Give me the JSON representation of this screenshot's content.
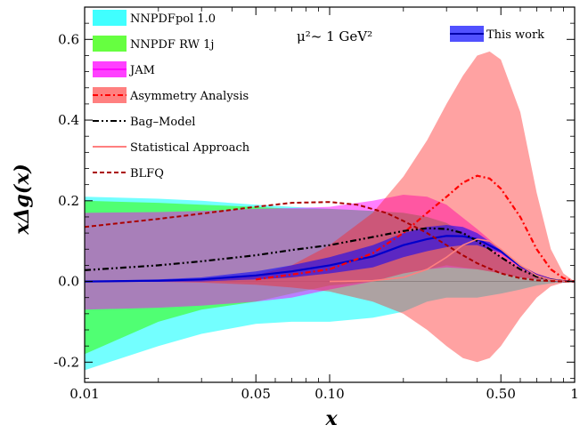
{
  "chart_data": {
    "type": "area",
    "xlabel": "x",
    "ylabel": "xΔg(x)",
    "annotation": "μ²~ 1 GeV²",
    "xscale": "log",
    "xlim": [
      0.01,
      1
    ],
    "ylim": [
      -0.25,
      0.68
    ],
    "x_ticks": [
      {
        "v": 0.01,
        "label": "0.01"
      },
      {
        "v": 0.05,
        "label": "0.05"
      },
      {
        "v": 0.1,
        "label": "0.10"
      },
      {
        "v": 0.5,
        "label": "0.50"
      },
      {
        "v": 1,
        "label": "1"
      }
    ],
    "y_ticks": [
      {
        "v": -0.2,
        "label": "-0.2"
      },
      {
        "v": 0.0,
        "label": "0.0"
      },
      {
        "v": 0.2,
        "label": "0.2"
      },
      {
        "v": 0.4,
        "label": "0.4"
      },
      {
        "v": 0.6,
        "label": "0.6"
      }
    ],
    "bands": [
      {
        "name": "NNPDFpol 1.0",
        "color": "#00ffff",
        "opacity": 0.55,
        "x": [
          0.01,
          0.02,
          0.03,
          0.05,
          0.07,
          0.1,
          0.15,
          0.2,
          0.25,
          0.3,
          0.4,
          0.5,
          0.6,
          0.7,
          0.8,
          0.9,
          1.0
        ],
        "upper": [
          0.21,
          0.205,
          0.2,
          0.19,
          0.185,
          0.18,
          0.175,
          0.17,
          0.16,
          0.145,
          0.1,
          0.06,
          0.03,
          0.015,
          0.006,
          0.002,
          0.0
        ],
        "lower": [
          -0.22,
          -0.16,
          -0.13,
          -0.105,
          -0.1,
          -0.1,
          -0.09,
          -0.075,
          -0.05,
          -0.04,
          -0.04,
          -0.03,
          -0.02,
          -0.01,
          -0.005,
          -0.002,
          0.0
        ]
      },
      {
        "name": "NNPDF RW 1j",
        "color": "#33ff00",
        "opacity": 0.55,
        "x": [
          0.01,
          0.02,
          0.03,
          0.05,
          0.07,
          0.1,
          0.15,
          0.2,
          0.25,
          0.3,
          0.4,
          0.5,
          0.6,
          0.7,
          0.8,
          0.9,
          1.0
        ],
        "upper": [
          0.2,
          0.195,
          0.19,
          0.185,
          0.18,
          0.18,
          0.175,
          0.17,
          0.16,
          0.145,
          0.1,
          0.06,
          0.03,
          0.015,
          0.006,
          0.002,
          0.0
        ],
        "lower": [
          -0.18,
          -0.1,
          -0.07,
          -0.05,
          -0.03,
          -0.01,
          0.0,
          0.02,
          0.03,
          0.04,
          0.03,
          0.02,
          0.01,
          0.006,
          0.003,
          0.001,
          0.0
        ]
      },
      {
        "name": "JAM",
        "color": "#ff00ff",
        "opacity": 0.5,
        "x": [
          0.01,
          0.02,
          0.03,
          0.05,
          0.07,
          0.1,
          0.15,
          0.2,
          0.25,
          0.3,
          0.4,
          0.5,
          0.6,
          0.7,
          0.8,
          0.9,
          1.0
        ],
        "upper": [
          0.17,
          0.172,
          0.175,
          0.18,
          0.182,
          0.185,
          0.2,
          0.215,
          0.21,
          0.19,
          0.13,
          0.08,
          0.04,
          0.02,
          0.008,
          0.002,
          0.0
        ],
        "lower": [
          -0.07,
          -0.065,
          -0.06,
          -0.05,
          -0.04,
          -0.02,
          0.0,
          0.02,
          0.03,
          0.035,
          0.03,
          0.02,
          0.01,
          0.006,
          0.003,
          0.001,
          0.0
        ]
      },
      {
        "name": "Asymmetry Analysis",
        "color": "#ff2222",
        "opacity": 0.42,
        "x": [
          0.01,
          0.02,
          0.03,
          0.05,
          0.07,
          0.1,
          0.15,
          0.2,
          0.25,
          0.3,
          0.35,
          0.4,
          0.45,
          0.5,
          0.6,
          0.7,
          0.8,
          0.9,
          1.0
        ],
        "upper": [
          0.0,
          0.001,
          0.004,
          0.015,
          0.04,
          0.09,
          0.17,
          0.26,
          0.35,
          0.44,
          0.51,
          0.56,
          0.57,
          0.55,
          0.42,
          0.22,
          0.08,
          0.02,
          0.0
        ],
        "lower": [
          0.0,
          -0.001,
          -0.003,
          -0.008,
          -0.015,
          -0.025,
          -0.05,
          -0.08,
          -0.12,
          -0.16,
          -0.19,
          -0.2,
          -0.19,
          -0.16,
          -0.09,
          -0.04,
          -0.012,
          -0.003,
          0.0
        ]
      },
      {
        "name": "This work",
        "color": "#0000ff",
        "opacity": 0.55,
        "with_line": true,
        "x": [
          0.01,
          0.02,
          0.03,
          0.05,
          0.07,
          0.1,
          0.15,
          0.2,
          0.25,
          0.3,
          0.35,
          0.4,
          0.5,
          0.6,
          0.7,
          0.8,
          0.9,
          1.0
        ],
        "upper": [
          0.001,
          0.005,
          0.01,
          0.025,
          0.04,
          0.06,
          0.09,
          0.12,
          0.135,
          0.14,
          0.135,
          0.12,
          0.08,
          0.04,
          0.017,
          0.006,
          0.001,
          0.0
        ],
        "lower": [
          -0.001,
          -0.001,
          0.0,
          0.005,
          0.01,
          0.02,
          0.035,
          0.06,
          0.075,
          0.085,
          0.09,
          0.09,
          0.07,
          0.035,
          0.014,
          0.004,
          0.001,
          0.0
        ],
        "central": [
          0.0,
          0.002,
          0.005,
          0.015,
          0.025,
          0.04,
          0.062,
          0.09,
          0.105,
          0.113,
          0.112,
          0.105,
          0.075,
          0.038,
          0.016,
          0.005,
          0.001,
          0.0
        ]
      }
    ],
    "curves": [
      {
        "name": "Asymmetry Analysis",
        "color": "#ff0000",
        "dash": "6,3,2,3",
        "width": 2.2,
        "legend": false,
        "x": [
          0.05,
          0.1,
          0.15,
          0.2,
          0.25,
          0.3,
          0.35,
          0.4,
          0.45,
          0.5,
          0.6,
          0.7,
          0.8,
          0.9,
          1.0
        ],
        "y": [
          0.005,
          0.03,
          0.07,
          0.12,
          0.17,
          0.21,
          0.245,
          0.262,
          0.255,
          0.23,
          0.16,
          0.08,
          0.03,
          0.008,
          0.0
        ]
      },
      {
        "name": "Bag–Model",
        "color": "#000000",
        "dash": "7,3,2,3,2,3",
        "width": 2.2,
        "legend": true,
        "x": [
          0.01,
          0.02,
          0.03,
          0.05,
          0.07,
          0.1,
          0.15,
          0.2,
          0.25,
          0.3,
          0.35,
          0.4,
          0.45,
          0.5,
          0.6,
          0.7,
          0.8,
          0.9,
          1.0
        ],
        "y": [
          0.028,
          0.04,
          0.05,
          0.065,
          0.078,
          0.09,
          0.11,
          0.125,
          0.132,
          0.13,
          0.12,
          0.1,
          0.08,
          0.06,
          0.03,
          0.012,
          0.004,
          0.001,
          0.0
        ]
      },
      {
        "name": "Statistical Approach",
        "color": "#ff7f7f",
        "dash": "",
        "width": 1.6,
        "legend": true,
        "x": [
          0.1,
          0.15,
          0.2,
          0.25,
          0.3,
          0.35,
          0.4,
          0.45,
          0.5,
          0.6,
          0.7,
          0.8,
          0.9,
          1.0
        ],
        "y": [
          0.0,
          0.002,
          0.01,
          0.03,
          0.06,
          0.09,
          0.105,
          0.1,
          0.08,
          0.04,
          0.015,
          0.004,
          0.001,
          0.0
        ]
      },
      {
        "name": "BLFQ",
        "color": "#aa0000",
        "dash": "5,3",
        "width": 2.0,
        "legend": true,
        "x": [
          0.01,
          0.02,
          0.03,
          0.05,
          0.07,
          0.1,
          0.13,
          0.17,
          0.2,
          0.25,
          0.3,
          0.35,
          0.4,
          0.5,
          0.6,
          0.7,
          0.8,
          0.9,
          1.0
        ],
        "y": [
          0.135,
          0.155,
          0.168,
          0.185,
          0.195,
          0.197,
          0.19,
          0.17,
          0.15,
          0.12,
          0.09,
          0.065,
          0.045,
          0.02,
          0.008,
          0.003,
          0.001,
          0.0,
          0.0
        ]
      }
    ],
    "legend": {
      "placement": "top-left",
      "items": [
        {
          "label": "NNPDFpol 1.0",
          "kind": "band",
          "color": "#00ffff"
        },
        {
          "label": "NNPDF RW 1j",
          "kind": "band",
          "color": "#33ff00"
        },
        {
          "label": "JAM",
          "kind": "band",
          "color": "#ff00ff",
          "line_color": "#ff00ff"
        },
        {
          "label": "Asymmetry Analysis",
          "kind": "band",
          "color": "#ff5555",
          "line_color": "#ff0000",
          "line_dash": "6,3,2,3"
        },
        {
          "label": "Bag–Model",
          "kind": "line",
          "color": "#000000",
          "dash": "7,3,2,3,2,3"
        },
        {
          "label": "Statistical Approach",
          "kind": "line",
          "color": "#ff7f7f",
          "dash": ""
        },
        {
          "label": "BLFQ",
          "kind": "line",
          "color": "#aa0000",
          "dash": "5,3"
        }
      ],
      "this_work": {
        "label": "This work",
        "color": "#3333ff",
        "line_color": "#0000aa"
      }
    }
  }
}
